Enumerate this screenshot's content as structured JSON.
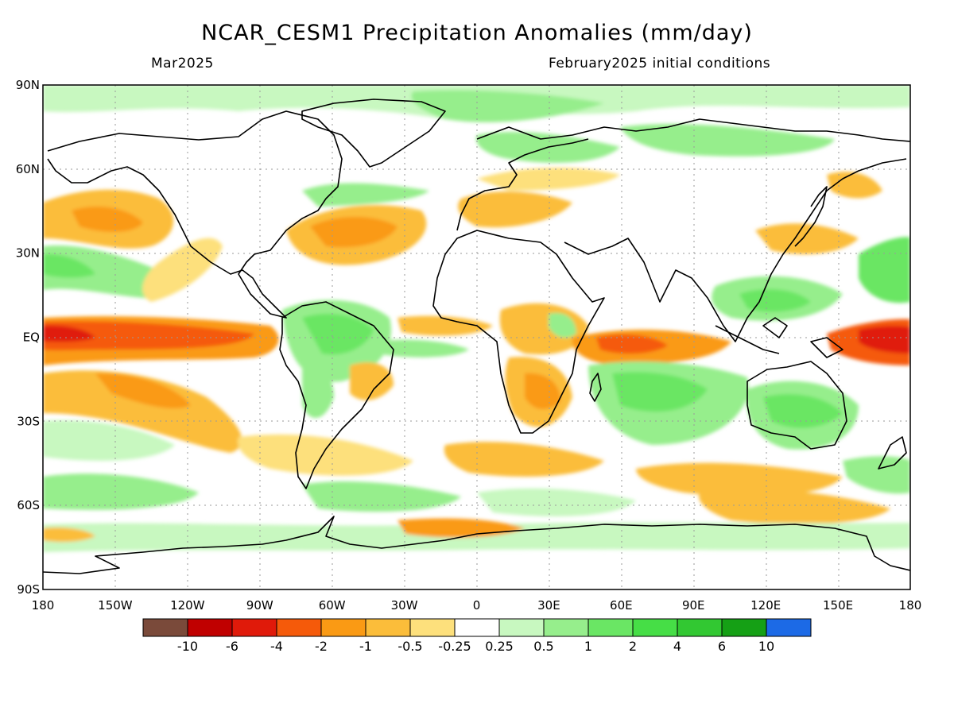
{
  "title": "NCAR_CESM1 Precipitation Anomalies (mm/day)",
  "subtitle_left": "Mar2025",
  "subtitle_right": "February2025 initial conditions",
  "chart_data": {
    "type": "heatmap",
    "title": "NCAR_CESM1 Precipitation Anomalies (mm/day)",
    "xlim": [
      -180,
      180
    ],
    "ylim": [
      -90,
      90
    ],
    "x_ticks": [
      "180",
      "150W",
      "120W",
      "90W",
      "60W",
      "30W",
      "0",
      "30E",
      "60E",
      "90E",
      "120E",
      "150E",
      "180"
    ],
    "y_ticks": [
      "90N",
      "60N",
      "30N",
      "EQ",
      "30S",
      "60S",
      "90S"
    ],
    "grid": true,
    "colorbar": {
      "labels": [
        "-10",
        "-6",
        "-4",
        "-2",
        "-1",
        "-0.5",
        "-0.25",
        "0.25",
        "0.5",
        "1",
        "2",
        "4",
        "6",
        "10"
      ],
      "colors": [
        "#7a4a3a",
        "#c00000",
        "#e01a0a",
        "#f55a0a",
        "#fa9a14",
        "#fbbd3a",
        "#fde07c",
        "#ffffff",
        "#c8f8c0",
        "#96ee8c",
        "#6ae664",
        "#46de46",
        "#32c832",
        "#15a015",
        "#1c6ae6"
      ]
    }
  }
}
